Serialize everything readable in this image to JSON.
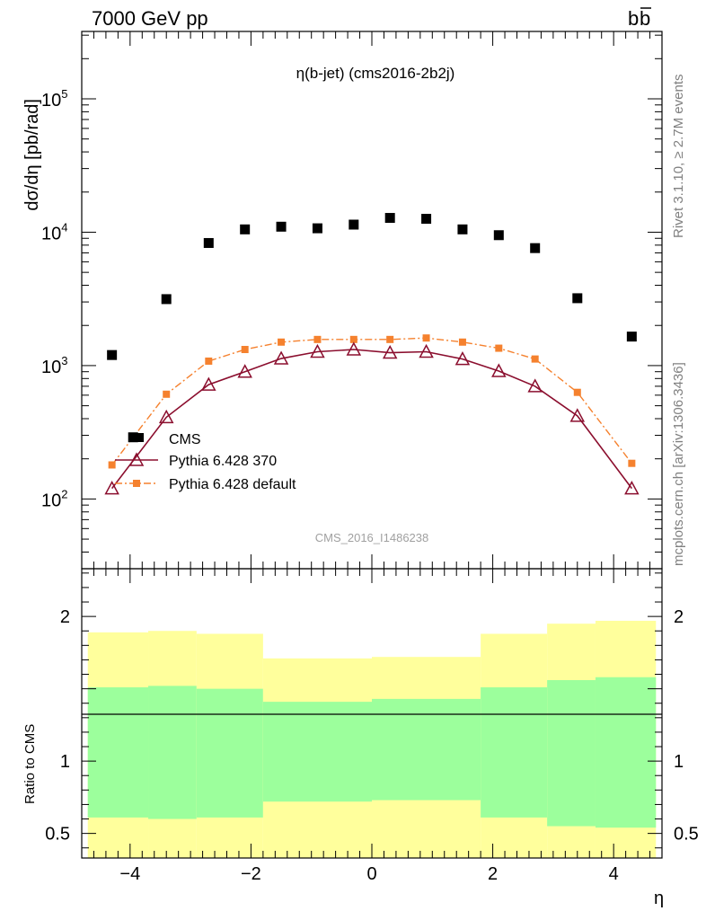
{
  "header": {
    "energy_label": "7000 GeV pp",
    "process_label": "b",
    "process_bar": "b"
  },
  "side_labels": {
    "rivet": "Rivet 3.1.10, ≥ 2.7M events",
    "mcplots": "mcplots.cern.ch [arXiv:1306.3436]"
  },
  "chart_data": [
    {
      "type": "scatter",
      "title": "η(b-jet) (cms2016-2b2j)",
      "watermark": "CMS_2016_I1486238",
      "ylabel": "dσ/dη [pb/rad]",
      "xlabel": "",
      "yscale": "log",
      "xlim": [
        -4.8,
        4.8
      ],
      "ylim": [
        30,
        320000
      ],
      "yticks": [
        {
          "value": 100,
          "base": "10",
          "exp": "2"
        },
        {
          "value": 1000,
          "base": "10",
          "exp": "3"
        },
        {
          "value": 10000,
          "base": "10",
          "exp": "4"
        },
        {
          "value": 100000,
          "base": "10",
          "exp": "5"
        }
      ],
      "legend_position": "bottom-left",
      "series": [
        {
          "name": "CMS",
          "color": "#000000",
          "marker": "square",
          "x": [
            -4.3,
            -3.95,
            -3.4,
            -2.7,
            -2.1,
            -1.5,
            -0.9,
            -0.3,
            0.3,
            0.9,
            1.5,
            2.1,
            2.7,
            3.4,
            4.3
          ],
          "y": [
            1200,
            290,
            3150,
            8300,
            10500,
            11000,
            10700,
            11400,
            12800,
            12600,
            10500,
            9500,
            7600,
            3200,
            1650
          ]
        },
        {
          "name": "Pythia 6.428 370",
          "color": "#8b0e2e",
          "marker": "triangle-open",
          "line": "solid",
          "x": [
            -4.3,
            -3.4,
            -2.7,
            -2.1,
            -1.5,
            -0.9,
            -0.3,
            0.3,
            0.9,
            1.5,
            2.1,
            2.7,
            3.4,
            4.3
          ],
          "y": [
            120,
            410,
            720,
            900,
            1130,
            1270,
            1320,
            1250,
            1270,
            1120,
            910,
            700,
            420,
            120
          ]
        },
        {
          "name": "Pythia 6.428 default",
          "color": "#f5812e",
          "marker": "square-small",
          "line": "dashdot",
          "x": [
            -4.3,
            -3.4,
            -2.7,
            -2.1,
            -1.5,
            -0.9,
            -0.3,
            0.3,
            0.9,
            1.5,
            2.1,
            2.7,
            3.4,
            4.3
          ],
          "y": [
            180,
            610,
            1080,
            1320,
            1500,
            1570,
            1570,
            1570,
            1610,
            1500,
            1350,
            1120,
            630,
            185
          ]
        }
      ]
    },
    {
      "type": "area",
      "ylabel": "Ratio to CMS",
      "xlabel": "η",
      "xlim": [
        -4.8,
        4.8
      ],
      "ylim": [
        0.33,
        2.33
      ],
      "xticks": [
        "−4",
        "−2",
        "0",
        "2",
        "4"
      ],
      "xtick_values": [
        -4,
        -2,
        0,
        2,
        4
      ],
      "yticks": [
        "0.5",
        "1",
        "2"
      ],
      "ytick_values": [
        0.5,
        1,
        2
      ],
      "reference_line": 1,
      "bands": {
        "bin_edges": [
          -4.7,
          -3.7,
          -2.9,
          -1.8,
          0.0,
          1.8,
          2.9,
          3.7,
          4.7
        ],
        "yellow_color": "#ffff9c",
        "green_color": "#9cff9c",
        "yellow_upper": [
          1.89,
          1.9,
          1.88,
          1.71,
          1.72,
          1.88,
          1.95,
          1.97
        ],
        "green_upper": [
          1.51,
          1.52,
          1.5,
          1.41,
          1.43,
          1.51,
          1.56,
          1.58
        ],
        "green_lower": [
          0.61,
          0.6,
          0.61,
          0.72,
          0.73,
          0.61,
          0.55,
          0.54
        ],
        "yellow_lower": [
          0.33,
          0.33,
          0.33,
          0.33,
          0.33,
          0.33,
          0.33,
          0.33
        ]
      }
    }
  ]
}
